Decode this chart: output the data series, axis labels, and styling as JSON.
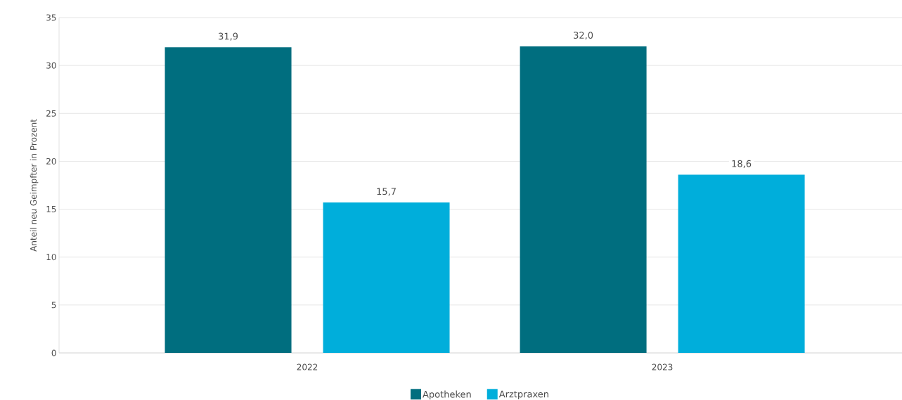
{
  "chart_data": {
    "type": "bar",
    "ylabel": "Anteil neu Geimpfter in Prozent",
    "categories": [
      "2022",
      "2023"
    ],
    "series": [
      {
        "name": "Apotheken",
        "color": "#006e7f",
        "values": [
          31.9,
          32.0
        ],
        "value_labels": [
          "31,9",
          "32,0"
        ]
      },
      {
        "name": "Arztpraxen",
        "color": "#00aedb",
        "values": [
          15.7,
          18.6
        ],
        "value_labels": [
          "15,7",
          "18,6"
        ]
      }
    ],
    "ylim": [
      0,
      35
    ],
    "yticks": [
      0,
      5,
      10,
      15,
      20,
      25,
      30,
      35
    ],
    "grid": "y",
    "legend": "bottom"
  }
}
